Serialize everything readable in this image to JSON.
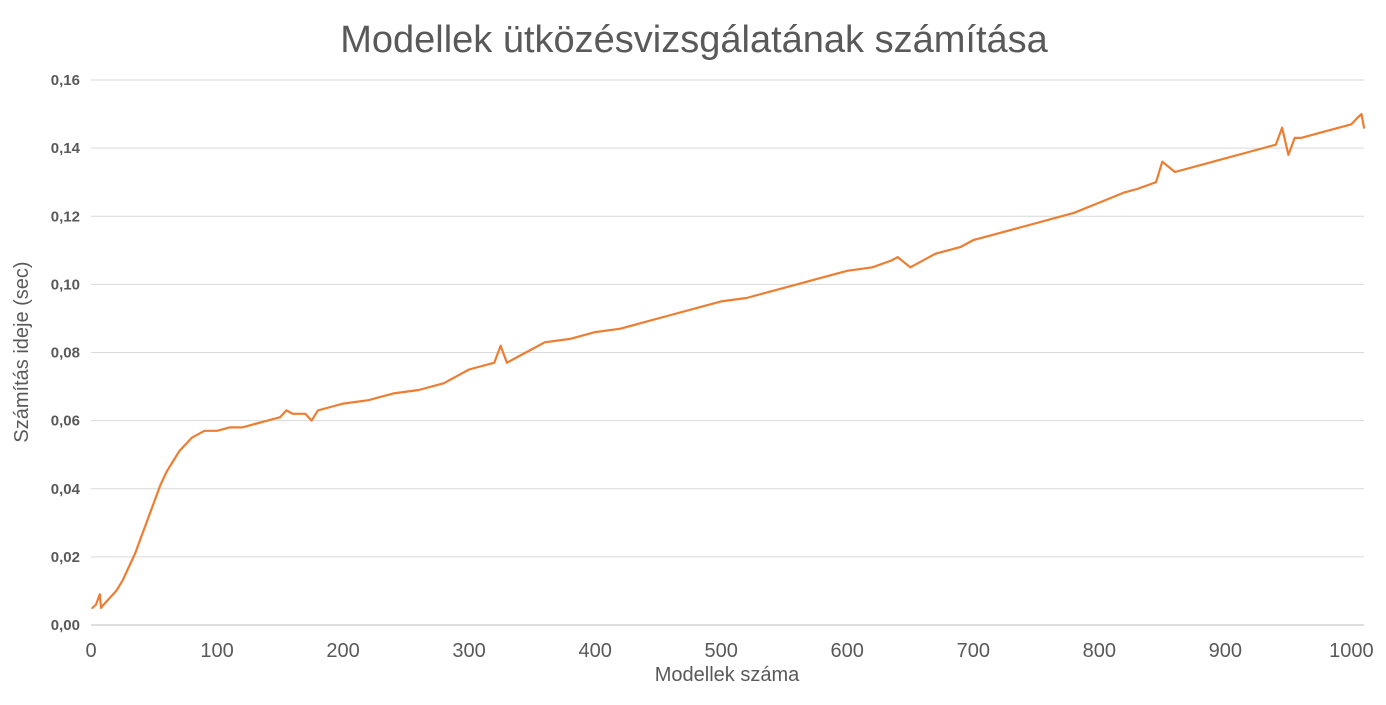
{
  "chart_data": {
    "type": "line",
    "title": "Modellek ütközésvizsgálatának számítása",
    "xlabel": "Modellek száma",
    "ylabel": "Számítás ideje (sec)",
    "xlim": [
      0,
      1010
    ],
    "ylim": [
      0,
      0.16
    ],
    "x_ticks": [
      0,
      100,
      200,
      300,
      400,
      500,
      600,
      700,
      800,
      900,
      1000
    ],
    "x_tick_labels": [
      "0",
      "100",
      "200",
      "300",
      "400",
      "500",
      "600",
      "700",
      "800",
      "900",
      "1000"
    ],
    "y_ticks": [
      0,
      0.02,
      0.04,
      0.06,
      0.08,
      0.1,
      0.12,
      0.14,
      0.16
    ],
    "y_tick_labels": [
      "0,00",
      "0,02",
      "0,04",
      "0,06",
      "0,08",
      "0,10",
      "0,12",
      "0,14",
      "0,16"
    ],
    "grid": true,
    "legend": "none",
    "colors": {
      "series": "#ed7d31",
      "grid": "#d9d9d9",
      "text": "#595959"
    },
    "series": [
      {
        "x": [
          1,
          4,
          7,
          8,
          10,
          15,
          20,
          25,
          30,
          35,
          40,
          45,
          50,
          55,
          60,
          65,
          70,
          75,
          80,
          85,
          90,
          100,
          110,
          120,
          130,
          140,
          150,
          155,
          160,
          170,
          175,
          180,
          190,
          200,
          220,
          240,
          260,
          280,
          290,
          300,
          320,
          325,
          330,
          340,
          350,
          360,
          380,
          400,
          420,
          440,
          460,
          480,
          500,
          520,
          540,
          560,
          580,
          600,
          620,
          635,
          640,
          650,
          670,
          690,
          700,
          720,
          740,
          760,
          780,
          800,
          820,
          830,
          845,
          850,
          860,
          880,
          900,
          920,
          940,
          945,
          950,
          955,
          960,
          980,
          1000,
          1005,
          1008,
          1010
        ],
        "y": [
          0.005,
          0.006,
          0.009,
          0.005,
          0.006,
          0.008,
          0.01,
          0.013,
          0.017,
          0.021,
          0.026,
          0.031,
          0.036,
          0.041,
          0.045,
          0.048,
          0.051,
          0.053,
          0.055,
          0.056,
          0.057,
          0.057,
          0.058,
          0.058,
          0.059,
          0.06,
          0.061,
          0.063,
          0.062,
          0.062,
          0.06,
          0.063,
          0.064,
          0.065,
          0.066,
          0.068,
          0.069,
          0.071,
          0.073,
          0.075,
          0.077,
          0.082,
          0.077,
          0.079,
          0.081,
          0.083,
          0.084,
          0.086,
          0.087,
          0.089,
          0.091,
          0.093,
          0.095,
          0.096,
          0.098,
          0.1,
          0.102,
          0.104,
          0.105,
          0.107,
          0.108,
          0.105,
          0.109,
          0.111,
          0.113,
          0.115,
          0.117,
          0.119,
          0.121,
          0.124,
          0.127,
          0.128,
          0.13,
          0.136,
          0.133,
          0.135,
          0.137,
          0.139,
          0.141,
          0.146,
          0.138,
          0.143,
          0.143,
          0.145,
          0.147,
          0.149,
          0.15,
          0.146
        ]
      }
    ]
  }
}
